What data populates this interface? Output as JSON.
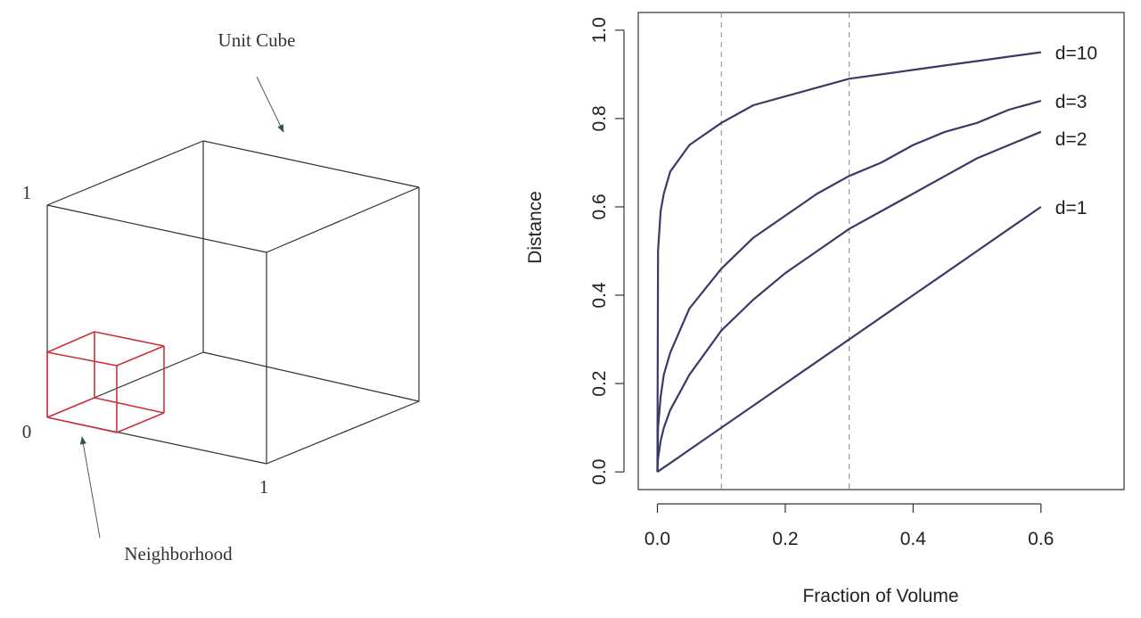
{
  "cube_figure": {
    "title_label": "Unit Cube",
    "neighborhood_label": "Neighborhood",
    "origin_label": "0",
    "top_tick_label": "1",
    "right_tick_label": "1"
  },
  "colors": {
    "cube_line": "#2f2f2f",
    "neighborhood": "#c8323c",
    "arrow_head": "#2f5a3a",
    "curve": "#3a3a66",
    "axis": "#333333",
    "reference_line": "#888888"
  },
  "chart_data": {
    "type": "line",
    "title": "",
    "xlabel": "Fraction of Volume",
    "ylabel": "Distance",
    "xlim": [
      -0.03,
      0.73
    ],
    "ylim": [
      -0.04,
      1.04
    ],
    "xticks": [
      0.0,
      0.2,
      0.4,
      0.6
    ],
    "xtick_labels": [
      "0.0",
      "0.2",
      "0.4",
      "0.6"
    ],
    "yticks": [
      0.0,
      0.2,
      0.4,
      0.6,
      0.8,
      1.0
    ],
    "ytick_labels": [
      "0.0",
      "0.2",
      "0.4",
      "0.6",
      "0.8",
      "1.0"
    ],
    "reference_vlines": [
      0.1,
      0.3
    ],
    "grid": false,
    "legend": "curve-end labels",
    "x": [
      0.0,
      0.001,
      0.005,
      0.01,
      0.02,
      0.05,
      0.1,
      0.15,
      0.2,
      0.25,
      0.3,
      0.35,
      0.4,
      0.45,
      0.5,
      0.55,
      0.6
    ],
    "series": [
      {
        "name": "d=10",
        "values": [
          0.0,
          0.5,
          0.59,
          0.63,
          0.68,
          0.74,
          0.79,
          0.83,
          0.85,
          0.87,
          0.89,
          0.9,
          0.91,
          0.92,
          0.93,
          0.94,
          0.95
        ]
      },
      {
        "name": "d=3",
        "values": [
          0.0,
          0.1,
          0.17,
          0.22,
          0.27,
          0.37,
          0.46,
          0.53,
          0.58,
          0.63,
          0.67,
          0.7,
          0.74,
          0.77,
          0.79,
          0.82,
          0.84
        ]
      },
      {
        "name": "d=2",
        "values": [
          0.0,
          0.03,
          0.07,
          0.1,
          0.14,
          0.22,
          0.32,
          0.39,
          0.45,
          0.5,
          0.55,
          0.59,
          0.63,
          0.67,
          0.71,
          0.74,
          0.77
        ]
      },
      {
        "name": "d=1",
        "values": [
          0.0,
          0.001,
          0.005,
          0.01,
          0.02,
          0.05,
          0.1,
          0.15,
          0.2,
          0.25,
          0.3,
          0.35,
          0.4,
          0.45,
          0.5,
          0.55,
          0.6
        ]
      }
    ]
  }
}
